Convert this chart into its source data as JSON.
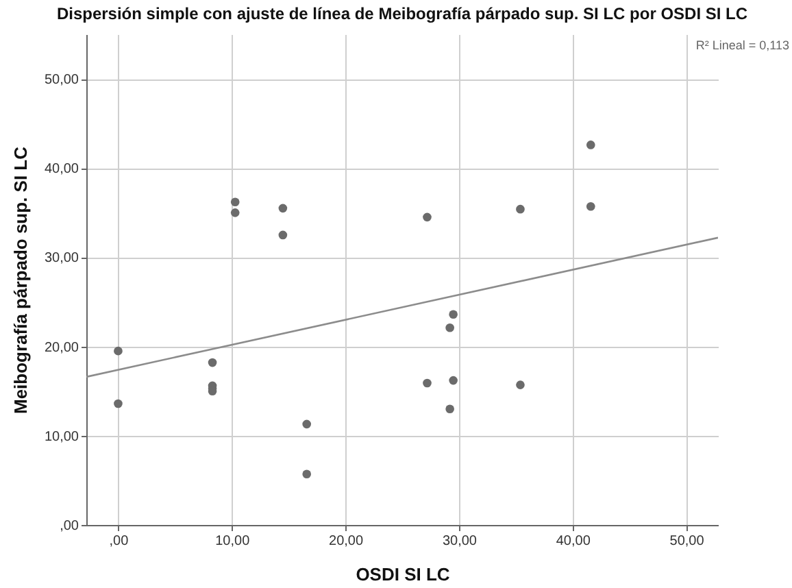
{
  "chart_data": {
    "type": "scatter",
    "title": "Dispersión simple con ajuste de línea de Meibografía párpado sup. SI LC por OSDI SI LC",
    "xlabel": "OSDI SI LC",
    "ylabel": "Meibografía párpado sup. SI LC",
    "annotations": [
      "R² Lineal = 0,113"
    ],
    "xlim": [
      -2.8,
      52.8
    ],
    "ylim": [
      0,
      55
    ],
    "xticks": [
      {
        "value": 0,
        "label": ",00"
      },
      {
        "value": 10,
        "label": "10,00"
      },
      {
        "value": 20,
        "label": "20,00"
      },
      {
        "value": 30,
        "label": "30,00"
      },
      {
        "value": 40,
        "label": "40,00"
      },
      {
        "value": 50,
        "label": "50,00"
      }
    ],
    "yticks": [
      {
        "value": 0,
        "label": ",00"
      },
      {
        "value": 10,
        "label": "10,00"
      },
      {
        "value": 20,
        "label": "20,00"
      },
      {
        "value": 30,
        "label": "30,00"
      },
      {
        "value": 40,
        "label": "40,00"
      },
      {
        "value": 50,
        "label": "50,00"
      }
    ],
    "grid": true,
    "series": [
      {
        "marker": "circle",
        "color": "#6b6b6b",
        "x": [
          0,
          0,
          8.3,
          8.3,
          8.3,
          8.3,
          10.3,
          10.3,
          14.5,
          14.5,
          16.6,
          16.6,
          27.2,
          27.2,
          29.2,
          29.2,
          29.5,
          29.5,
          35.4,
          35.4,
          41.6,
          41.6
        ],
        "values": [
          19.5,
          13.6,
          18.2,
          15.6,
          15.3,
          15.0,
          36.2,
          35.0,
          35.5,
          32.5,
          11.3,
          5.7,
          34.5,
          15.9,
          13.0,
          22.1,
          16.2,
          23.6,
          35.4,
          15.7,
          42.6,
          35.7
        ]
      },
      {
        "type": "line",
        "marker": "none",
        "color": "#8c8c8c",
        "x": [
          -2.8,
          52.8
        ],
        "values": [
          16.6,
          32.2
        ]
      }
    ]
  }
}
